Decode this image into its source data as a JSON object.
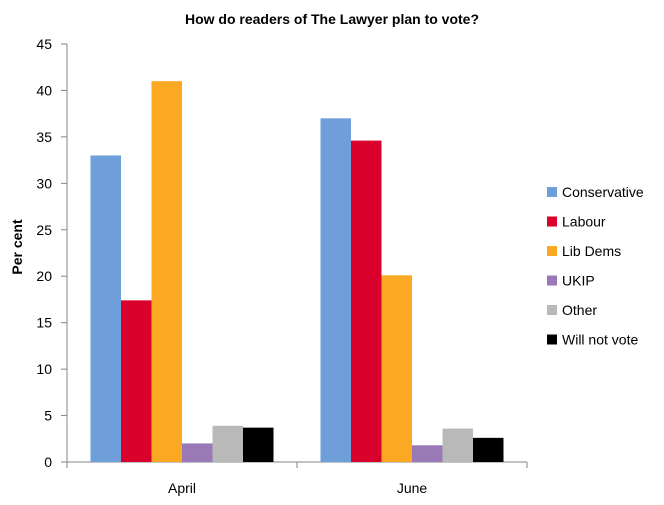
{
  "chart_data": {
    "type": "bar",
    "title": "How do readers of The Lawyer plan to vote?",
    "xlabel": "",
    "ylabel": "Per cent",
    "categories": [
      "April",
      "June"
    ],
    "ylim": [
      0,
      45
    ],
    "yticks": [
      0,
      5,
      10,
      15,
      20,
      25,
      30,
      35,
      40,
      45
    ],
    "grid": false,
    "legend_position": "right",
    "series": [
      {
        "name": "Conservative",
        "color": "#6f9fdb",
        "values": [
          33,
          37
        ]
      },
      {
        "name": "Labour",
        "color": "#d9002b",
        "values": [
          17.4,
          34.6
        ]
      },
      {
        "name": "Lib Dems",
        "color": "#fba922",
        "values": [
          41,
          20.1
        ]
      },
      {
        "name": "UKIP",
        "color": "#9a7ab6",
        "values": [
          2,
          1.8
        ]
      },
      {
        "name": "Other",
        "color": "#b9b9b9",
        "values": [
          3.9,
          3.6
        ]
      },
      {
        "name": "Will not vote",
        "color": "#000000",
        "values": [
          3.7,
          2.6
        ]
      }
    ]
  }
}
